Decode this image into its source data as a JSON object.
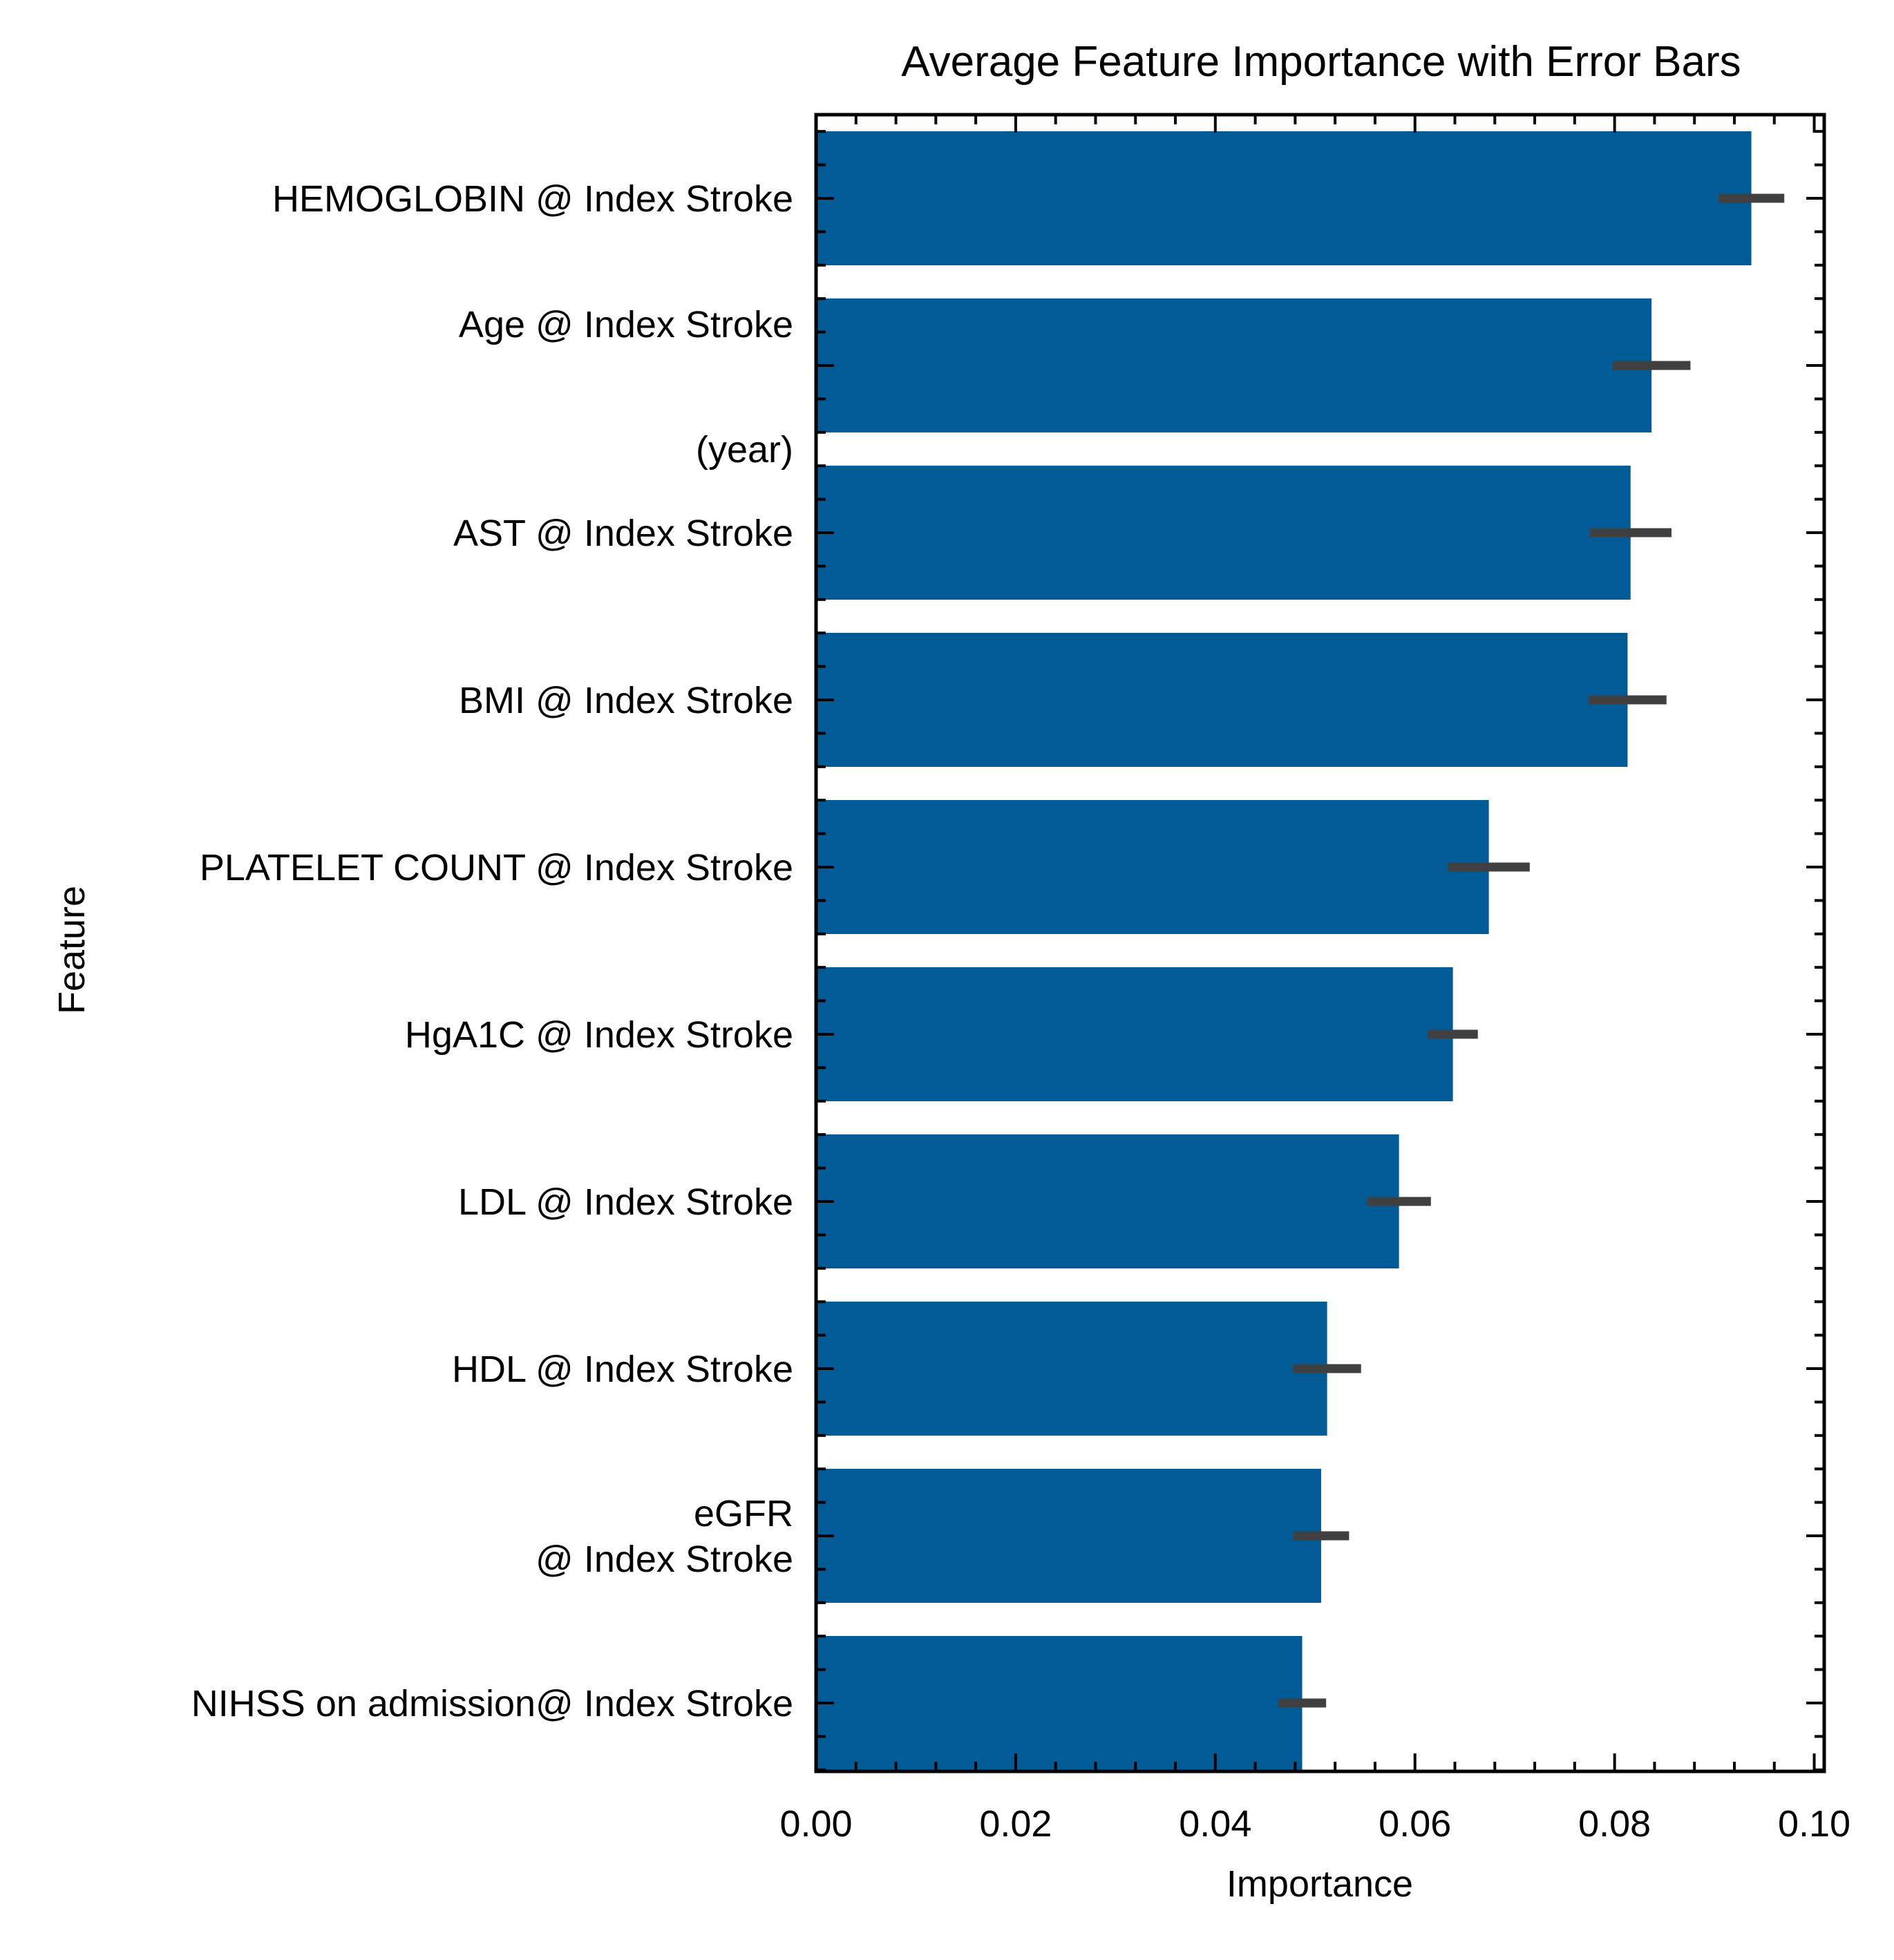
{
  "chart_data": {
    "type": "bar",
    "orientation": "horizontal",
    "title": "Average Feature Importance with Error Bars",
    "xlabel": "Importance",
    "ylabel": "Feature",
    "xlim": [
      0.0,
      0.101
    ],
    "xticks": [
      "0.00",
      "0.02",
      "0.04",
      "0.06",
      "0.08",
      "0.10"
    ],
    "xtick_values": [
      0.0,
      0.02,
      0.04,
      0.06,
      0.08,
      0.1
    ],
    "grid": false,
    "bar_color": "#005b96",
    "error_color": "#404040",
    "categories": [
      "HEMOGLOBIN @ Index Stroke",
      "Age @ Index Stroke\n\n(year)",
      "AST @ Index Stroke",
      "BMI @ Index Stroke",
      "PLATELET COUNT @ Index Stroke",
      "HgA1C @ Index Stroke",
      "LDL @ Index Stroke",
      "HDL @ Index Stroke",
      "eGFR\n@ Index Stroke",
      "NIHSS on admission@ Index Stroke"
    ],
    "label_lines": [
      [
        "HEMOGLOBIN @ Index Stroke"
      ],
      [
        "Age @ Index Stroke",
        "(year)"
      ],
      [
        "AST @ Index Stroke"
      ],
      [
        "BMI @ Index Stroke"
      ],
      [
        "PLATELET COUNT @ Index Stroke"
      ],
      [
        "HgA1C @ Index Stroke"
      ],
      [
        "LDL @ Index Stroke"
      ],
      [
        "HDL @ Index Stroke"
      ],
      [
        "eGFR",
        "@ Index Stroke"
      ],
      [
        "NIHSS on admission@ Index Stroke"
      ]
    ],
    "values": [
      0.0937,
      0.0837,
      0.0816,
      0.0813,
      0.0674,
      0.0638,
      0.0584,
      0.0512,
      0.0506,
      0.0487
    ],
    "errors": [
      0.0033,
      0.0039,
      0.0041,
      0.0039,
      0.0041,
      0.0025,
      0.0032,
      0.0034,
      0.0028,
      0.0024
    ]
  }
}
